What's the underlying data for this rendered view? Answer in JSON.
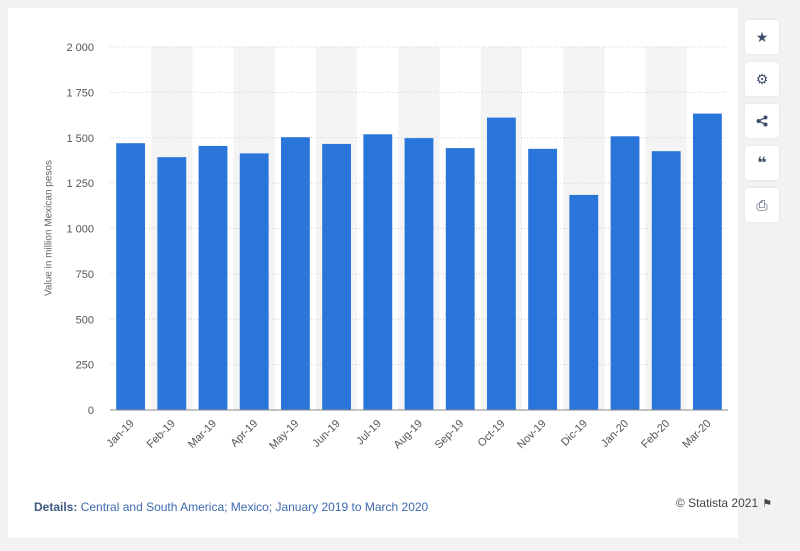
{
  "chart_data": {
    "type": "bar",
    "title": "",
    "xlabel": "",
    "ylabel": "Value in million Mexican pesos",
    "ylim": [
      0,
      2000
    ],
    "yticks": [
      0,
      250,
      500,
      750,
      1000,
      1250,
      1500,
      1750,
      2000
    ],
    "ytick_labels": [
      "0",
      "250",
      "500",
      "750",
      "1 000",
      "1 250",
      "1 500",
      "1 750",
      "2 000"
    ],
    "categories": [
      "Jan-19",
      "Feb-19",
      "Mar-19",
      "Apr-19",
      "May-19",
      "Jun-19",
      "Jul-19",
      "Aug-19",
      "Sep-19",
      "Oct-19",
      "Nov-19",
      "Dic-19",
      "Jan-20",
      "Feb-20",
      "Mar-20"
    ],
    "values": [
      1470,
      1393,
      1455,
      1414,
      1503,
      1466,
      1519,
      1498,
      1443,
      1611,
      1439,
      1185,
      1508,
      1426,
      1633
    ],
    "bar_color": "#2a75d9",
    "grid": true
  },
  "details": {
    "label": "Details:",
    "text": "Central and South America; Mexico; January 2019 to March 2020"
  },
  "credit": "© Statista 2021",
  "toolbar": {
    "icons": [
      "star-icon",
      "gear-icon",
      "share-icon",
      "quote-icon",
      "print-icon"
    ]
  }
}
